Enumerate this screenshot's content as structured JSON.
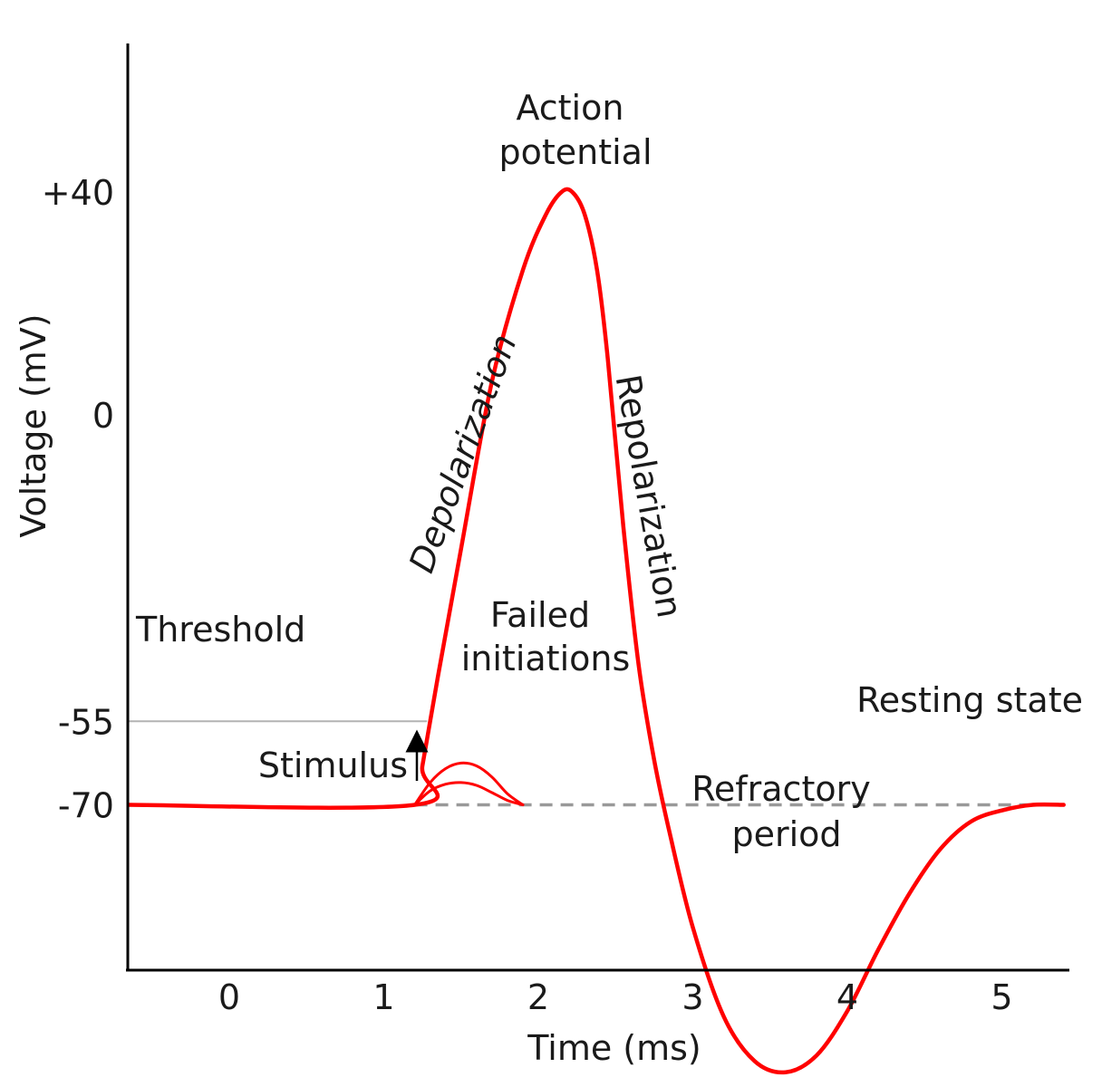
{
  "chart_data": {
    "type": "line",
    "title": "",
    "xlabel": "Time (ms)",
    "ylabel": "Voltage (mV)",
    "xlim": [
      -0.65,
      5.45
    ],
    "ylim": [
      -135,
      84
    ],
    "x_ticks": [
      {
        "value": 0,
        "label": "0"
      },
      {
        "value": 1,
        "label": "1"
      },
      {
        "value": 2,
        "label": "2"
      },
      {
        "value": 3,
        "label": "3"
      },
      {
        "value": 4,
        "label": "4"
      },
      {
        "value": 5,
        "label": "5"
      }
    ],
    "y_ticks": [
      {
        "value": 40,
        "label": "+40"
      },
      {
        "value": 0,
        "label": "0"
      },
      {
        "value": -55,
        "label": "-55"
      },
      {
        "value": -70,
        "label": "-70"
      }
    ],
    "grid": false,
    "colors": {
      "trace": "#ff0000",
      "threshold": "#b3b3b3",
      "resting": "#999999",
      "axis": "#000000"
    },
    "reference_lines": [
      {
        "label": "Threshold",
        "y": -55,
        "x": [
          -0.65,
          1.28
        ]
      },
      {
        "label": "Resting state",
        "y": -70,
        "x": [
          1.2,
          5.45
        ]
      }
    ],
    "series": [
      {
        "x": [
          -0.65,
          1.2,
          1.25,
          1.35,
          1.5,
          1.7,
          1.9,
          2.05,
          2.15,
          2.22,
          2.3,
          2.38,
          2.45,
          2.55,
          2.65,
          2.75,
          2.85,
          3.0,
          3.2,
          3.4,
          3.6,
          3.8,
          4.0,
          4.2,
          4.4,
          4.6,
          4.8,
          5.0,
          5.2,
          5.4
        ],
        "y": [
          -70,
          -70,
          -63,
          -47,
          -24,
          6,
          26,
          36,
          40,
          40,
          36,
          26,
          10,
          -20,
          -45,
          -62,
          -75,
          -92,
          -108,
          -116,
          -118,
          -115,
          -107,
          -96,
          -86,
          -78,
          -73,
          -71,
          -70,
          -70
        ]
      },
      {
        "x": [
          1.2,
          1.3,
          1.4,
          1.5,
          1.6,
          1.7,
          1.8,
          1.9
        ],
        "y": [
          -70,
          -66,
          -63.5,
          -62.5,
          -63,
          -65,
          -68,
          -70
        ]
      },
      {
        "x": [
          1.2,
          1.3,
          1.4,
          1.5,
          1.6,
          1.7,
          1.8,
          1.9
        ],
        "y": [
          -70,
          -67.5,
          -66.3,
          -66,
          -66.5,
          -67.8,
          -69.2,
          -70
        ]
      }
    ],
    "annotations": [
      {
        "id": "action-potential",
        "lines": [
          "Action",
          "potential"
        ],
        "x": 2.22,
        "y": 40
      },
      {
        "id": "depolarization",
        "lines": [
          "Depolarization"
        ],
        "x": 1.7,
        "y": 5
      },
      {
        "id": "repolarization",
        "lines": [
          "Repolarization"
        ],
        "x": 2.65,
        "y": -10
      },
      {
        "id": "failed-initiations",
        "lines": [
          "Failed",
          "initiations"
        ],
        "x": 1.55,
        "y": -62
      },
      {
        "id": "refractory-period",
        "lines": [
          "Refractory",
          "period"
        ],
        "x": 3.6,
        "y": -105
      },
      {
        "id": "stimulus",
        "lines": [
          "Stimulus"
        ],
        "x": 1.2,
        "y": -70
      }
    ]
  }
}
